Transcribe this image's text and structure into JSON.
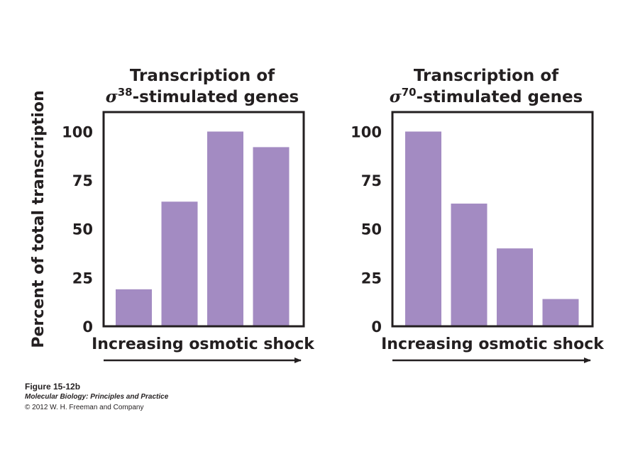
{
  "ylabel": "Percent of total transcription",
  "chart_data": [
    {
      "type": "bar",
      "title_line1": "Transcription of",
      "title_sigma": "σ",
      "title_superscript": "38",
      "title_rest": "-stimulated genes",
      "xlabel": "Increasing osmotic shock",
      "ylabel": "Percent of total transcription",
      "ylim": [
        0,
        110
      ],
      "yticks": [
        "0",
        "25",
        "50",
        "75",
        "100"
      ],
      "categories": [
        "",
        "",
        "",
        ""
      ],
      "values": [
        19,
        64,
        100,
        92
      ],
      "grid": false,
      "bar_color": "#a38bc2"
    },
    {
      "type": "bar",
      "title_line1": "Transcription of",
      "title_sigma": "σ",
      "title_superscript": "70",
      "title_rest": "-stimulated genes",
      "xlabel": "Increasing osmotic shock",
      "ylabel": "Percent of total transcription",
      "ylim": [
        0,
        110
      ],
      "yticks": [
        "0",
        "25",
        "50",
        "75",
        "100"
      ],
      "categories": [
        "",
        "",
        "",
        ""
      ],
      "values": [
        100,
        63,
        40,
        14
      ],
      "grid": false,
      "bar_color": "#a38bc2"
    }
  ],
  "caption": {
    "figure": "Figure 15-12b",
    "book": "Molecular Biology: Principles and Practice",
    "copyright": "© 2012 W. H. Freeman and Company"
  }
}
